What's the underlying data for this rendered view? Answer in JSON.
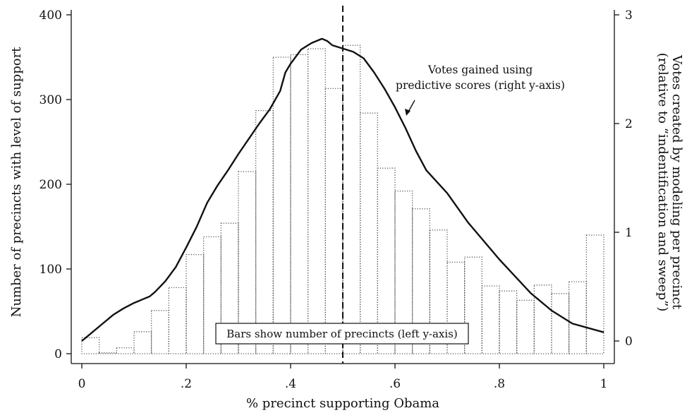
{
  "chart_data": {
    "type": "bar+line",
    "xlabel": "% precinct supporting Obama",
    "ylabel_left": "Number of precincts with level of support",
    "ylabel_right_lines": [
      "Votes created by modeling per precinct",
      "(relative to “indentification and sweep”)"
    ],
    "xlim": [
      0,
      1
    ],
    "ylim_left": [
      0,
      400
    ],
    "ylim_right": [
      0,
      3
    ],
    "x_ticks": [
      0,
      0.2,
      0.4,
      0.6,
      0.8,
      1
    ],
    "x_tick_labels": [
      "0",
      ".2",
      ".4",
      ".6",
      ".8",
      "1"
    ],
    "y_left_ticks": [
      0,
      100,
      200,
      300,
      400
    ],
    "y_left_tick_labels": [
      "0",
      "100",
      "200",
      "300",
      "400"
    ],
    "y_right_ticks": [
      0,
      1,
      2,
      3
    ],
    "y_right_tick_labels": [
      "0",
      "1",
      "2",
      "3"
    ],
    "reference_line_x": 0.5,
    "histogram": {
      "bin_width": 0.0333,
      "bin_starts": [
        0,
        0.0333,
        0.0667,
        0.1,
        0.1333,
        0.1667,
        0.2,
        0.2333,
        0.2667,
        0.3,
        0.3333,
        0.3667,
        0.4,
        0.4333,
        0.4667,
        0.5,
        0.5333,
        0.5667,
        0.6,
        0.6333,
        0.6667,
        0.7,
        0.7333,
        0.7667,
        0.8,
        0.8333,
        0.8667,
        0.9,
        0.9333,
        0.9667
      ],
      "counts": [
        19,
        1,
        7,
        26,
        51,
        78,
        117,
        138,
        154,
        215,
        287,
        350,
        353,
        360,
        313,
        364,
        284,
        219,
        192,
        171,
        146,
        108,
        114,
        80,
        74,
        63,
        81,
        71,
        85,
        140
      ]
    },
    "line_series": {
      "name": "Votes gained using predictive scores (right y-axis)",
      "x": [
        0,
        0.02,
        0.04,
        0.06,
        0.08,
        0.1,
        0.12,
        0.13,
        0.14,
        0.16,
        0.18,
        0.2,
        0.22,
        0.24,
        0.26,
        0.28,
        0.3,
        0.32,
        0.34,
        0.36,
        0.38,
        0.39,
        0.4,
        0.42,
        0.44,
        0.46,
        0.47,
        0.48,
        0.5,
        0.52,
        0.54,
        0.56,
        0.58,
        0.6,
        0.62,
        0.64,
        0.66,
        0.7,
        0.74,
        0.8,
        0.86,
        0.9,
        0.94,
        1.0
      ],
      "y": [
        0.0,
        0.08,
        0.16,
        0.24,
        0.3,
        0.35,
        0.39,
        0.41,
        0.45,
        0.55,
        0.68,
        0.86,
        1.05,
        1.27,
        1.43,
        1.57,
        1.72,
        1.86,
        2.0,
        2.13,
        2.3,
        2.47,
        2.55,
        2.68,
        2.74,
        2.78,
        2.76,
        2.72,
        2.69,
        2.66,
        2.6,
        2.47,
        2.32,
        2.15,
        1.96,
        1.75,
        1.57,
        1.36,
        1.09,
        0.75,
        0.44,
        0.28,
        0.16,
        0.08
      ]
    },
    "annotations": {
      "line_label_lines": [
        "Votes gained using",
        "predictive scores (right y-axis)"
      ],
      "bars_label": "Bars show number of precincts (left y-axis)"
    }
  }
}
